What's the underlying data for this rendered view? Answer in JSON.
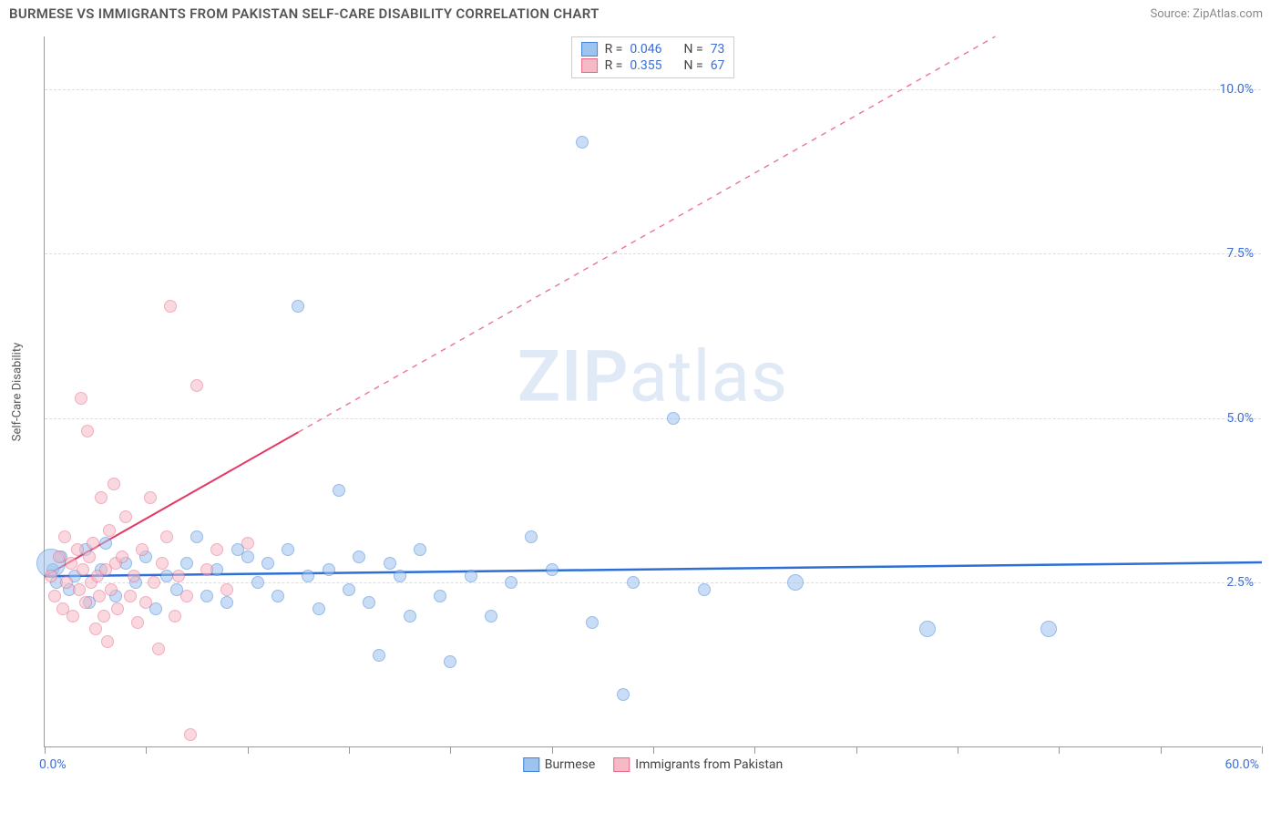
{
  "header": {
    "title": "BURMESE VS IMMIGRANTS FROM PAKISTAN SELF-CARE DISABILITY CORRELATION CHART",
    "source": "Source: ZipAtlas.com"
  },
  "chart": {
    "type": "scatter",
    "y_axis_title": "Self-Care Disability",
    "background_color": "#ffffff",
    "grid_color": "#dddddd",
    "axis_color": "#999999",
    "watermark": "ZIPatlas",
    "xlim": [
      0,
      60
    ],
    "ylim": [
      0,
      10.8
    ],
    "x_min_label": "0.0%",
    "x_max_label": "60.0%",
    "x_ticks": [
      0,
      5,
      10,
      15,
      20,
      25,
      30,
      35,
      40,
      45,
      50,
      55,
      60
    ],
    "y_ticks": [
      {
        "v": 2.5,
        "label": "2.5%"
      },
      {
        "v": 5.0,
        "label": "5.0%"
      },
      {
        "v": 7.5,
        "label": "7.5%"
      },
      {
        "v": 10.0,
        "label": "10.0%"
      }
    ],
    "series": [
      {
        "name": "Burmese",
        "fill_color": "#9dc3f0",
        "stroke_color": "#4285d6",
        "fill_opacity": 0.55,
        "marker_radius": 7,
        "trend": {
          "slope": 0.0035,
          "intercept": 2.6,
          "color": "#2e6fd6",
          "width": 2.5,
          "dash_after_x": 60
        },
        "points": [
          [
            0.4,
            2.7
          ],
          [
            0.6,
            2.5
          ],
          [
            0.8,
            2.9
          ],
          [
            0.3,
            2.8,
            16
          ],
          [
            1.2,
            2.4
          ],
          [
            1.5,
            2.6
          ],
          [
            2.0,
            3.0
          ],
          [
            2.2,
            2.2
          ],
          [
            2.8,
            2.7
          ],
          [
            3.0,
            3.1
          ],
          [
            3.5,
            2.3
          ],
          [
            4.0,
            2.8
          ],
          [
            4.5,
            2.5
          ],
          [
            5.0,
            2.9
          ],
          [
            5.5,
            2.1
          ],
          [
            6.0,
            2.6
          ],
          [
            6.5,
            2.4
          ],
          [
            7.0,
            2.8
          ],
          [
            7.5,
            3.2
          ],
          [
            8.0,
            2.3
          ],
          [
            8.5,
            2.7
          ],
          [
            9.0,
            2.2
          ],
          [
            9.5,
            3.0
          ],
          [
            10.0,
            2.9
          ],
          [
            10.5,
            2.5
          ],
          [
            11.0,
            2.8
          ],
          [
            11.5,
            2.3
          ],
          [
            12.0,
            3.0
          ],
          [
            12.5,
            6.7
          ],
          [
            13.0,
            2.6
          ],
          [
            13.5,
            2.1
          ],
          [
            14.0,
            2.7
          ],
          [
            14.5,
            3.9
          ],
          [
            15.0,
            2.4
          ],
          [
            15.5,
            2.9
          ],
          [
            16.0,
            2.2
          ],
          [
            16.5,
            1.4
          ],
          [
            17.0,
            2.8
          ],
          [
            17.5,
            2.6
          ],
          [
            18.0,
            2.0
          ],
          [
            18.5,
            3.0
          ],
          [
            19.5,
            2.3
          ],
          [
            20.0,
            1.3
          ],
          [
            21.0,
            2.6
          ],
          [
            22.0,
            2.0
          ],
          [
            23.0,
            2.5
          ],
          [
            24.0,
            3.2
          ],
          [
            25.0,
            2.7
          ],
          [
            26.5,
            9.2
          ],
          [
            27.0,
            1.9
          ],
          [
            28.5,
            0.8
          ],
          [
            29.0,
            2.5
          ],
          [
            31.0,
            5.0
          ],
          [
            32.5,
            2.4
          ],
          [
            37.0,
            2.5,
            9
          ],
          [
            43.5,
            1.8,
            9
          ],
          [
            49.5,
            1.8,
            9
          ]
        ]
      },
      {
        "name": "Immigrants from Pakistan",
        "fill_color": "#f6b9c6",
        "stroke_color": "#e76b8a",
        "fill_opacity": 0.55,
        "marker_radius": 7,
        "trend": {
          "slope": 0.175,
          "intercept": 2.6,
          "color": "#e23b67",
          "width": 2,
          "dash_after_x": 12.5
        },
        "points": [
          [
            0.3,
            2.6
          ],
          [
            0.5,
            2.3
          ],
          [
            0.7,
            2.9
          ],
          [
            0.9,
            2.1
          ],
          [
            1.0,
            3.2
          ],
          [
            1.1,
            2.5
          ],
          [
            1.3,
            2.8
          ],
          [
            1.4,
            2.0
          ],
          [
            1.6,
            3.0
          ],
          [
            1.7,
            2.4
          ],
          [
            1.8,
            5.3
          ],
          [
            1.9,
            2.7
          ],
          [
            2.0,
            2.2
          ],
          [
            2.1,
            4.8
          ],
          [
            2.2,
            2.9
          ],
          [
            2.3,
            2.5
          ],
          [
            2.4,
            3.1
          ],
          [
            2.5,
            1.8
          ],
          [
            2.6,
            2.6
          ],
          [
            2.7,
            2.3
          ],
          [
            2.8,
            3.8
          ],
          [
            2.9,
            2.0
          ],
          [
            3.0,
            2.7
          ],
          [
            3.1,
            1.6
          ],
          [
            3.2,
            3.3
          ],
          [
            3.3,
            2.4
          ],
          [
            3.4,
            4.0
          ],
          [
            3.5,
            2.8
          ],
          [
            3.6,
            2.1
          ],
          [
            3.8,
            2.9
          ],
          [
            4.0,
            3.5
          ],
          [
            4.2,
            2.3
          ],
          [
            4.4,
            2.6
          ],
          [
            4.6,
            1.9
          ],
          [
            4.8,
            3.0
          ],
          [
            5.0,
            2.2
          ],
          [
            5.2,
            3.8
          ],
          [
            5.4,
            2.5
          ],
          [
            5.6,
            1.5
          ],
          [
            5.8,
            2.8
          ],
          [
            6.0,
            3.2
          ],
          [
            6.2,
            6.7
          ],
          [
            6.4,
            2.0
          ],
          [
            6.6,
            2.6
          ],
          [
            7.0,
            2.3
          ],
          [
            7.5,
            5.5
          ],
          [
            8.0,
            2.7
          ],
          [
            8.5,
            3.0
          ],
          [
            9.0,
            2.4
          ],
          [
            10.0,
            3.1
          ],
          [
            7.2,
            0.2
          ]
        ]
      }
    ],
    "legend_top": [
      {
        "swatch_fill": "#9dc3f0",
        "swatch_stroke": "#4285d6",
        "r_label": "R =",
        "r_value": "0.046",
        "n_label": "N =",
        "n_value": "73"
      },
      {
        "swatch_fill": "#f6b9c6",
        "swatch_stroke": "#e76b8a",
        "r_label": "R =",
        "r_value": "0.355",
        "n_label": "N =",
        "n_value": "67"
      }
    ],
    "legend_bottom": [
      {
        "swatch_fill": "#9dc3f0",
        "swatch_stroke": "#4285d6",
        "label": "Burmese"
      },
      {
        "swatch_fill": "#f6b9c6",
        "swatch_stroke": "#e76b8a",
        "label": "Immigrants from Pakistan"
      }
    ]
  }
}
